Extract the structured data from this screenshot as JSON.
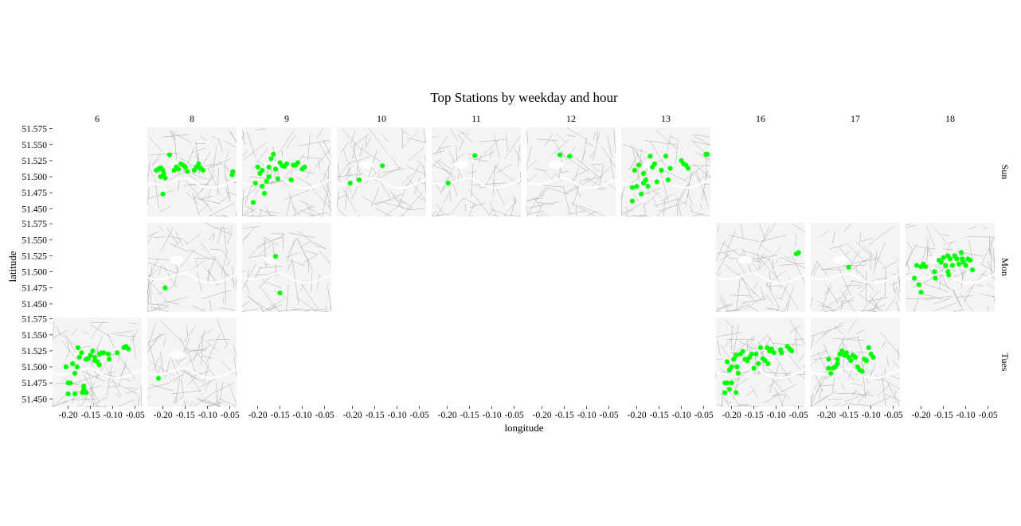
{
  "chart_data": {
    "type": "scatter",
    "title": "Top Stations by weekday and hour",
    "xlabel": "longitude",
    "ylabel": "latitude",
    "xlim": [
      -0.235,
      -0.035
    ],
    "ylim": [
      51.438,
      51.577
    ],
    "x_ticks": [
      "-0.20",
      "-0.15",
      "-0.10",
      "-0.05"
    ],
    "x_tick_values": [
      -0.2,
      -0.15,
      -0.1,
      -0.05
    ],
    "y_ticks": [
      "51.575",
      "51.550",
      "51.525",
      "51.500",
      "51.475",
      "51.450"
    ],
    "y_tick_values": [
      51.575,
      51.55,
      51.525,
      51.5,
      51.475,
      51.45
    ],
    "hours": [
      "6",
      "8",
      "9",
      "10",
      "11",
      "12",
      "13",
      "16",
      "17",
      "18"
    ],
    "weekdays": [
      "Sun",
      "Mon",
      "Tues"
    ],
    "point_color": "#00ff00",
    "basemap": "London street map (grey)",
    "panels": [
      {
        "weekday": "Sun",
        "hour": "8",
        "points": [
          [
            -0.215,
            51.51
          ],
          [
            -0.21,
            51.512
          ],
          [
            -0.205,
            51.514
          ],
          [
            -0.2,
            51.51
          ],
          [
            -0.198,
            51.505
          ],
          [
            -0.205,
            51.5
          ],
          [
            -0.195,
            51.498
          ],
          [
            -0.185,
            51.534
          ],
          [
            -0.175,
            51.51
          ],
          [
            -0.17,
            51.515
          ],
          [
            -0.165,
            51.512
          ],
          [
            -0.16,
            51.52
          ],
          [
            -0.155,
            51.518
          ],
          [
            -0.15,
            51.515
          ],
          [
            -0.145,
            51.508
          ],
          [
            -0.13,
            51.51
          ],
          [
            -0.125,
            51.515
          ],
          [
            -0.12,
            51.52
          ],
          [
            -0.115,
            51.513
          ],
          [
            -0.11,
            51.51
          ],
          [
            -0.2,
            51.473
          ],
          [
            -0.045,
            51.503
          ],
          [
            -0.043,
            51.508
          ]
        ]
      },
      {
        "weekday": "Sun",
        "hour": "9",
        "points": [
          [
            -0.21,
            51.46
          ],
          [
            -0.205,
            51.49
          ],
          [
            -0.2,
            51.515
          ],
          [
            -0.195,
            51.505
          ],
          [
            -0.19,
            51.51
          ],
          [
            -0.19,
            51.485
          ],
          [
            -0.185,
            51.474
          ],
          [
            -0.18,
            51.493
          ],
          [
            -0.175,
            51.5
          ],
          [
            -0.175,
            51.515
          ],
          [
            -0.17,
            51.528
          ],
          [
            -0.165,
            51.535
          ],
          [
            -0.16,
            51.512
          ],
          [
            -0.155,
            51.497
          ],
          [
            -0.15,
            51.522
          ],
          [
            -0.145,
            51.517
          ],
          [
            -0.14,
            51.516
          ],
          [
            -0.135,
            51.52
          ],
          [
            -0.125,
            51.495
          ],
          [
            -0.12,
            51.518
          ],
          [
            -0.115,
            51.518
          ],
          [
            -0.11,
            51.522
          ],
          [
            -0.1,
            51.512
          ],
          [
            -0.095,
            51.515
          ]
        ]
      },
      {
        "weekday": "Sun",
        "hour": "10",
        "points": [
          [
            -0.205,
            51.49
          ],
          [
            -0.185,
            51.495
          ],
          [
            -0.133,
            51.517
          ]
        ]
      },
      {
        "weekday": "Sun",
        "hour": "11",
        "points": [
          [
            -0.198,
            51.49
          ],
          [
            -0.138,
            51.533
          ]
        ]
      },
      {
        "weekday": "Sun",
        "hour": "12",
        "points": [
          [
            -0.16,
            51.534
          ],
          [
            -0.138,
            51.532
          ]
        ]
      },
      {
        "weekday": "Sun",
        "hour": "13",
        "points": [
          [
            -0.21,
            51.462
          ],
          [
            -0.21,
            51.483
          ],
          [
            -0.205,
            51.51
          ],
          [
            -0.2,
            51.485
          ],
          [
            -0.195,
            51.518
          ],
          [
            -0.19,
            51.473
          ],
          [
            -0.185,
            51.49
          ],
          [
            -0.185,
            51.505
          ],
          [
            -0.18,
            51.495
          ],
          [
            -0.175,
            51.485
          ],
          [
            -0.17,
            51.532
          ],
          [
            -0.165,
            51.515
          ],
          [
            -0.16,
            51.52
          ],
          [
            -0.155,
            51.492
          ],
          [
            -0.145,
            51.51
          ],
          [
            -0.135,
            51.532
          ],
          [
            -0.13,
            51.495
          ],
          [
            -0.125,
            51.513
          ],
          [
            -0.1,
            51.525
          ],
          [
            -0.095,
            51.52
          ],
          [
            -0.09,
            51.518
          ],
          [
            -0.085,
            51.513
          ],
          [
            -0.045,
            51.535
          ],
          [
            -0.042,
            51.535
          ]
        ]
      },
      {
        "weekday": "Mon",
        "hour": "8",
        "points": [
          [
            -0.195,
            51.475
          ]
        ]
      },
      {
        "weekday": "Mon",
        "hour": "9",
        "points": [
          [
            -0.16,
            51.524
          ],
          [
            -0.15,
            51.467
          ]
        ]
      },
      {
        "weekday": "Mon",
        "hour": "16",
        "points": [
          [
            -0.055,
            51.528
          ],
          [
            -0.05,
            51.53
          ]
        ]
      },
      {
        "weekday": "Mon",
        "hour": "17",
        "points": [
          [
            -0.15,
            51.507
          ]
        ]
      },
      {
        "weekday": "Mon",
        "hour": "18",
        "points": [
          [
            -0.215,
            51.49
          ],
          [
            -0.21,
            51.51
          ],
          [
            -0.205,
            51.48
          ],
          [
            -0.2,
            51.508
          ],
          [
            -0.2,
            51.468
          ],
          [
            -0.195,
            51.512
          ],
          [
            -0.19,
            51.508
          ],
          [
            -0.17,
            51.5
          ],
          [
            -0.168,
            51.49
          ],
          [
            -0.16,
            51.518
          ],
          [
            -0.155,
            51.515
          ],
          [
            -0.15,
            51.522
          ],
          [
            -0.145,
            51.51
          ],
          [
            -0.14,
            51.525
          ],
          [
            -0.14,
            51.5
          ],
          [
            -0.138,
            51.495
          ],
          [
            -0.135,
            51.52
          ],
          [
            -0.13,
            51.51
          ],
          [
            -0.125,
            51.525
          ],
          [
            -0.12,
            51.52
          ],
          [
            -0.115,
            51.512
          ],
          [
            -0.11,
            51.53
          ],
          [
            -0.108,
            51.52
          ],
          [
            -0.105,
            51.515
          ],
          [
            -0.1,
            51.51
          ],
          [
            -0.095,
            51.52
          ],
          [
            -0.09,
            51.518
          ],
          [
            -0.085,
            51.503
          ]
        ]
      },
      {
        "weekday": "Tues",
        "hour": "6",
        "points": [
          [
            -0.205,
            51.5
          ],
          [
            -0.2,
            51.458
          ],
          [
            -0.2,
            51.475
          ],
          [
            -0.195,
            51.475
          ],
          [
            -0.19,
            51.505
          ],
          [
            -0.185,
            51.49
          ],
          [
            -0.185,
            51.458
          ],
          [
            -0.18,
            51.5
          ],
          [
            -0.178,
            51.53
          ],
          [
            -0.175,
            51.515
          ],
          [
            -0.17,
            51.522
          ],
          [
            -0.168,
            51.46
          ],
          [
            -0.165,
            51.465
          ],
          [
            -0.165,
            51.47
          ],
          [
            -0.16,
            51.46
          ],
          [
            -0.16,
            51.512
          ],
          [
            -0.155,
            51.513
          ],
          [
            -0.15,
            51.518
          ],
          [
            -0.145,
            51.525
          ],
          [
            -0.14,
            51.515
          ],
          [
            -0.14,
            51.51
          ],
          [
            -0.135,
            51.508
          ],
          [
            -0.13,
            51.503
          ],
          [
            -0.13,
            51.52
          ],
          [
            -0.125,
            51.522
          ],
          [
            -0.12,
            51.522
          ],
          [
            -0.11,
            51.52
          ],
          [
            -0.108,
            51.512
          ],
          [
            -0.09,
            51.522
          ],
          [
            -0.075,
            51.53
          ],
          [
            -0.07,
            51.532
          ],
          [
            -0.065,
            51.528
          ]
        ]
      },
      {
        "weekday": "Tues",
        "hour": "8",
        "points": [
          [
            -0.21,
            51.482
          ]
        ]
      },
      {
        "weekday": "Tues",
        "hour": "16",
        "points": [
          [
            -0.215,
            51.475
          ],
          [
            -0.215,
            51.46
          ],
          [
            -0.21,
            51.508
          ],
          [
            -0.21,
            51.475
          ],
          [
            -0.205,
            51.465
          ],
          [
            -0.205,
            51.495
          ],
          [
            -0.2,
            51.5
          ],
          [
            -0.2,
            51.475
          ],
          [
            -0.195,
            51.512
          ],
          [
            -0.19,
            51.518
          ],
          [
            -0.19,
            51.46
          ],
          [
            -0.188,
            51.5
          ],
          [
            -0.185,
            51.49
          ],
          [
            -0.18,
            51.52
          ],
          [
            -0.175,
            51.524
          ],
          [
            -0.17,
            51.512
          ],
          [
            -0.165,
            51.51
          ],
          [
            -0.16,
            51.515
          ],
          [
            -0.155,
            51.52
          ],
          [
            -0.15,
            51.498
          ],
          [
            -0.145,
            51.52
          ],
          [
            -0.14,
            51.505
          ],
          [
            -0.135,
            51.53
          ],
          [
            -0.13,
            51.513
          ],
          [
            -0.125,
            51.51
          ],
          [
            -0.12,
            51.53
          ],
          [
            -0.118,
            51.505
          ],
          [
            -0.115,
            51.525
          ],
          [
            -0.11,
            51.528
          ],
          [
            -0.105,
            51.522
          ],
          [
            -0.09,
            51.527
          ],
          [
            -0.088,
            51.522
          ],
          [
            -0.075,
            51.532
          ],
          [
            -0.07,
            51.528
          ],
          [
            -0.065,
            51.525
          ]
        ]
      },
      {
        "weekday": "Tues",
        "hour": "17",
        "points": [
          [
            -0.195,
            51.512
          ],
          [
            -0.195,
            51.498
          ],
          [
            -0.19,
            51.49
          ],
          [
            -0.185,
            51.498
          ],
          [
            -0.18,
            51.5
          ],
          [
            -0.175,
            51.505
          ],
          [
            -0.175,
            51.512
          ],
          [
            -0.17,
            51.52
          ],
          [
            -0.165,
            51.525
          ],
          [
            -0.16,
            51.518
          ],
          [
            -0.155,
            51.522
          ],
          [
            -0.15,
            51.515
          ],
          [
            -0.145,
            51.51
          ],
          [
            -0.14,
            51.518
          ],
          [
            -0.135,
            51.515
          ],
          [
            -0.13,
            51.5
          ],
          [
            -0.125,
            51.495
          ],
          [
            -0.12,
            51.493
          ],
          [
            -0.115,
            51.512
          ],
          [
            -0.11,
            51.51
          ],
          [
            -0.105,
            51.53
          ],
          [
            -0.1,
            51.52
          ],
          [
            -0.095,
            51.515
          ]
        ]
      }
    ]
  }
}
